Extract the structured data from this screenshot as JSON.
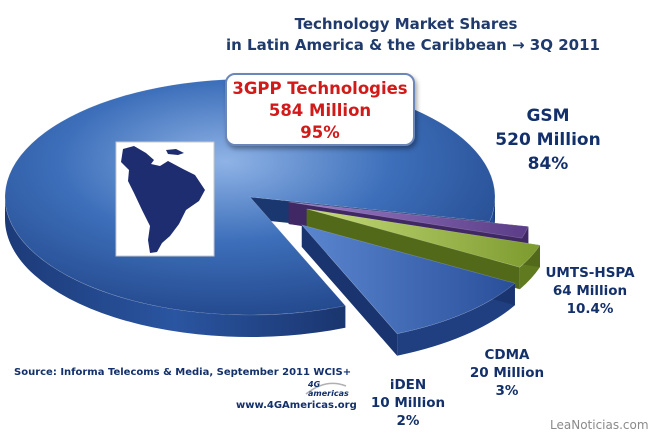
{
  "title": {
    "line1": "Technology Market Shares",
    "line2": "in Latin America & the Caribbean →  3Q 2011"
  },
  "callout": {
    "line1": "3GPP Technologies",
    "line2": "584 Million",
    "line3": "95%"
  },
  "labels": {
    "gsm": {
      "name": "GSM",
      "value": "520 Million",
      "pct": "84%"
    },
    "umts": {
      "name": "UMTS-HSPA",
      "value": "64 Million",
      "pct": "10.4%"
    },
    "cdma": {
      "name": "CDMA",
      "value": "20 Million",
      "pct": "3%"
    },
    "iden": {
      "name": "iDEN",
      "value": "10 Million",
      "pct": "2%"
    }
  },
  "source": "Source: Informa Telecoms & Media, September 2011 WCIS+",
  "website": "www.4GAmericas.org",
  "logo_text": "4G americas",
  "watermark": "LeaNoticias.com",
  "chart_data": {
    "type": "pie",
    "style": "3d-exploded",
    "title": "Technology Market Shares in Latin America & the Caribbean → 3Q 2011",
    "categories": [
      "GSM",
      "UMTS-HSPA",
      "CDMA",
      "iDEN"
    ],
    "values_million": [
      520,
      64,
      20,
      10
    ],
    "percent": [
      84,
      10.4,
      3,
      2
    ],
    "group_total": {
      "name": "3GPP Technologies",
      "value_million": 584,
      "percent": 95
    },
    "colors": {
      "gsm": "#2f5fa8",
      "umts": "#2a4f9a",
      "cdma": "#8aaa3a",
      "iden": "#6e4e9c"
    }
  }
}
